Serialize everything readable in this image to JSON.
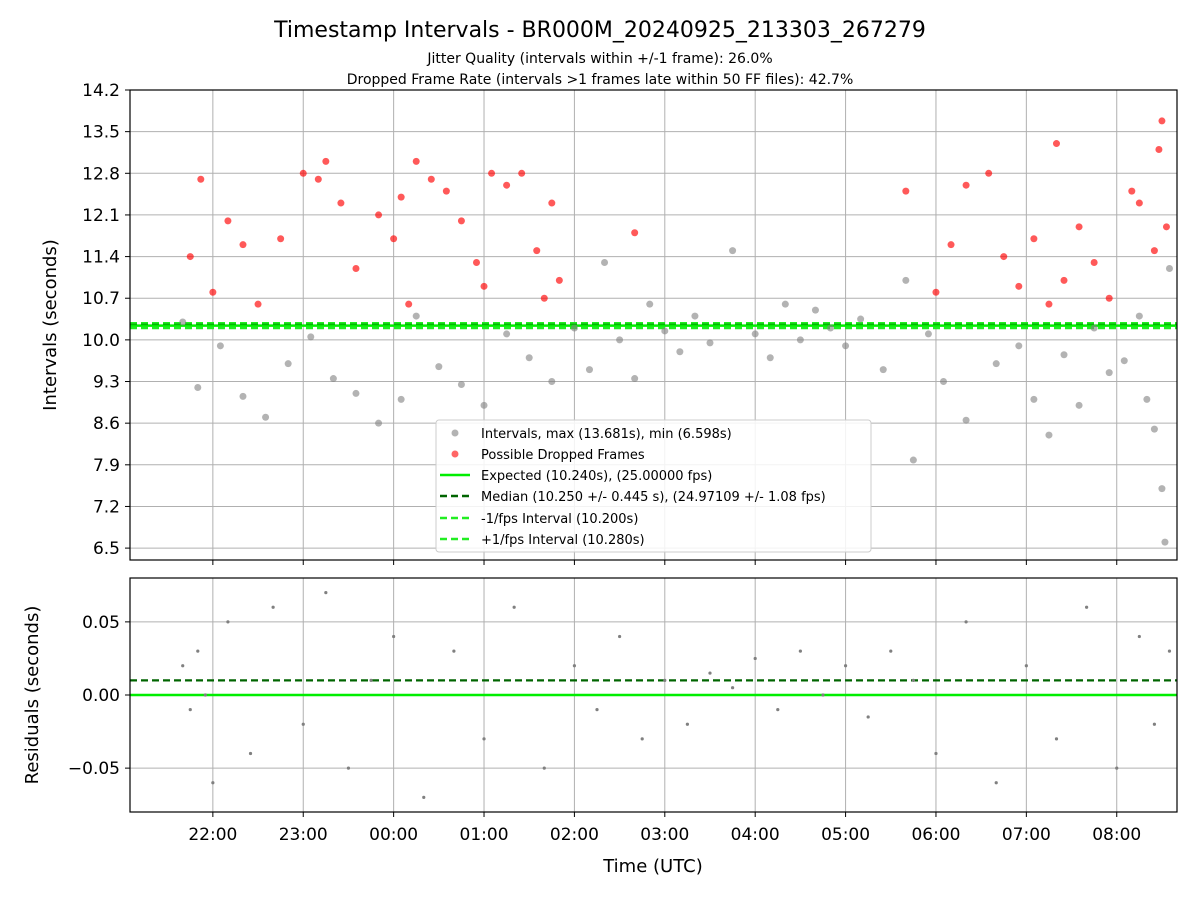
{
  "title": "Timestamp Intervals - BR000M_20240925_213303_267279",
  "subtitle_1": "Jitter Quality (intervals within +/-1 frame): 26.0%",
  "subtitle_2": "Dropped Frame Rate (intervals >1 frames late within 50 FF files): 42.7%",
  "colors": {
    "intervals": "#808080",
    "dropped": "#ff0000",
    "expected": "#00ee00",
    "median": "#006400",
    "bounds": "#22ee22",
    "grid": "#b0b0b0"
  },
  "chart_data": [
    {
      "type": "scatter",
      "ylabel": "Intervals (seconds)",
      "ylim": [
        6.3,
        14.2
      ],
      "yticks": [
        "6.5",
        "7.2",
        "7.9",
        "8.6",
        "9.3",
        "10.0",
        "10.7",
        "11.4",
        "12.1",
        "12.8",
        "13.5",
        "14.2"
      ],
      "xlim": [
        "21:05",
        "08:40"
      ],
      "grid": true,
      "legend_placement": "lower-center",
      "legend": [
        "Intervals, max (13.681s), min (6.598s)",
        "Possible Dropped Frames",
        "Expected (10.240s), (25.00000 fps)",
        "Median (10.250 +/- 0.445 s), (24.97109 +/- 1.08 fps)",
        "-1/fps Interval (10.200s)",
        "+1/fps Interval (10.280s)"
      ],
      "lines": {
        "expected": 10.24,
        "median": 10.25,
        "minus_1_fps": 10.2,
        "plus_1_fps": 10.28
      },
      "series": [
        {
          "name": "Intervals, max (13.681s), min (6.598s)",
          "points": [
            [
              "21:40",
              10.3
            ],
            [
              "21:50",
              9.2
            ],
            [
              "22:05",
              9.9
            ],
            [
              "22:20",
              9.05
            ],
            [
              "22:35",
              8.7
            ],
            [
              "22:50",
              9.6
            ],
            [
              "23:05",
              10.05
            ],
            [
              "23:20",
              9.35
            ],
            [
              "23:35",
              9.1
            ],
            [
              "23:50",
              8.6
            ],
            [
              "00:05",
              9.0
            ],
            [
              "00:15",
              10.4
            ],
            [
              "00:30",
              9.55
            ],
            [
              "00:45",
              9.25
            ],
            [
              "01:00",
              8.9
            ],
            [
              "01:15",
              10.1
            ],
            [
              "01:30",
              9.7
            ],
            [
              "01:45",
              9.3
            ],
            [
              "02:00",
              10.2
            ],
            [
              "02:10",
              9.5
            ],
            [
              "02:20",
              11.3
            ],
            [
              "02:30",
              10.0
            ],
            [
              "02:40",
              9.35
            ],
            [
              "02:50",
              10.6
            ],
            [
              "03:00",
              10.15
            ],
            [
              "03:10",
              9.8
            ],
            [
              "03:20",
              10.4
            ],
            [
              "03:30",
              9.95
            ],
            [
              "03:45",
              11.5
            ],
            [
              "04:00",
              10.1
            ],
            [
              "04:10",
              9.7
            ],
            [
              "04:20",
              10.6
            ],
            [
              "04:30",
              10.0
            ],
            [
              "04:40",
              10.5
            ],
            [
              "04:50",
              10.2
            ],
            [
              "05:00",
              9.9
            ],
            [
              "05:10",
              10.35
            ],
            [
              "05:25",
              9.5
            ],
            [
              "05:40",
              11.0
            ],
            [
              "05:45",
              7.98
            ],
            [
              "05:55",
              10.1
            ],
            [
              "06:05",
              9.3
            ],
            [
              "06:20",
              8.65
            ],
            [
              "06:40",
              9.6
            ],
            [
              "06:55",
              9.9
            ],
            [
              "07:05",
              9.0
            ],
            [
              "07:15",
              8.4
            ],
            [
              "07:25",
              9.75
            ],
            [
              "07:35",
              8.9
            ],
            [
              "07:45",
              10.2
            ],
            [
              "07:55",
              9.45
            ],
            [
              "08:05",
              9.65
            ],
            [
              "08:15",
              10.4
            ],
            [
              "08:20",
              9.0
            ],
            [
              "08:25",
              8.5
            ],
            [
              "08:30",
              7.5
            ],
            [
              "08:32",
              6.6
            ],
            [
              "08:35",
              11.2
            ]
          ]
        },
        {
          "name": "Possible Dropped Frames",
          "points": [
            [
              "21:45",
              11.4
            ],
            [
              "21:52",
              12.7
            ],
            [
              "22:00",
              10.8
            ],
            [
              "22:10",
              12.0
            ],
            [
              "22:20",
              11.6
            ],
            [
              "22:30",
              10.6
            ],
            [
              "22:45",
              11.7
            ],
            [
              "23:00",
              12.8
            ],
            [
              "23:10",
              12.7
            ],
            [
              "23:15",
              13.0
            ],
            [
              "23:25",
              12.3
            ],
            [
              "23:35",
              11.2
            ],
            [
              "23:50",
              12.1
            ],
            [
              "00:00",
              11.7
            ],
            [
              "00:05",
              12.4
            ],
            [
              "00:10",
              10.6
            ],
            [
              "00:15",
              13.0
            ],
            [
              "00:25",
              12.7
            ],
            [
              "00:35",
              12.5
            ],
            [
              "00:45",
              12.0
            ],
            [
              "00:55",
              11.3
            ],
            [
              "01:00",
              10.9
            ],
            [
              "01:05",
              12.8
            ],
            [
              "01:15",
              12.6
            ],
            [
              "01:25",
              12.8
            ],
            [
              "01:35",
              11.5
            ],
            [
              "01:40",
              10.7
            ],
            [
              "01:45",
              12.3
            ],
            [
              "01:50",
              11.0
            ],
            [
              "02:40",
              11.8
            ],
            [
              "05:40",
              12.5
            ],
            [
              "06:00",
              10.8
            ],
            [
              "06:10",
              11.6
            ],
            [
              "06:20",
              12.6
            ],
            [
              "06:35",
              12.8
            ],
            [
              "06:45",
              11.4
            ],
            [
              "06:55",
              10.9
            ],
            [
              "07:05",
              11.7
            ],
            [
              "07:15",
              10.6
            ],
            [
              "07:20",
              13.3
            ],
            [
              "07:25",
              11.0
            ],
            [
              "07:35",
              11.9
            ],
            [
              "07:45",
              11.3
            ],
            [
              "07:55",
              10.7
            ],
            [
              "08:10",
              12.5
            ],
            [
              "08:15",
              12.3
            ],
            [
              "08:25",
              11.5
            ],
            [
              "08:28",
              13.2
            ],
            [
              "08:30",
              13.68
            ],
            [
              "08:33",
              11.9
            ]
          ]
        }
      ]
    },
    {
      "type": "scatter",
      "xlabel": "Time (UTC)",
      "ylabel": "Residuals (seconds)",
      "ylim": [
        -0.08,
        0.08
      ],
      "yticks": [
        "−0.05",
        "0.00",
        "0.05"
      ],
      "xticks": [
        "22:00",
        "23:00",
        "00:00",
        "01:00",
        "02:00",
        "03:00",
        "04:00",
        "05:00",
        "06:00",
        "07:00",
        "08:00"
      ],
      "grid": true,
      "lines": {
        "expected": 0.0,
        "median": 0.01
      },
      "series": [
        {
          "name": "",
          "points": [
            [
              "21:40",
              0.02
            ],
            [
              "21:45",
              -0.01
            ],
            [
              "21:50",
              0.03
            ],
            [
              "21:55",
              0.0
            ],
            [
              "22:00",
              -0.06
            ],
            [
              "22:10",
              0.05
            ],
            [
              "22:25",
              -0.04
            ],
            [
              "22:40",
              0.06
            ],
            [
              "23:00",
              -0.02
            ],
            [
              "23:15",
              0.07
            ],
            [
              "23:30",
              -0.05
            ],
            [
              "23:45",
              0.01
            ],
            [
              "00:00",
              0.04
            ],
            [
              "00:20",
              -0.07
            ],
            [
              "00:40",
              0.03
            ],
            [
              "01:00",
              -0.03
            ],
            [
              "01:20",
              0.06
            ],
            [
              "01:40",
              -0.05
            ],
            [
              "02:00",
              0.02
            ],
            [
              "02:15",
              -0.01
            ],
            [
              "02:30",
              0.04
            ],
            [
              "02:45",
              -0.03
            ],
            [
              "03:00",
              0.01
            ],
            [
              "03:15",
              -0.02
            ],
            [
              "03:30",
              0.015
            ],
            [
              "03:45",
              0.005
            ],
            [
              "04:00",
              0.025
            ],
            [
              "04:15",
              -0.01
            ],
            [
              "04:30",
              0.03
            ],
            [
              "04:45",
              0.0
            ],
            [
              "05:00",
              0.02
            ],
            [
              "05:15",
              -0.015
            ],
            [
              "05:30",
              0.03
            ],
            [
              "05:45",
              0.01
            ],
            [
              "06:00",
              -0.04
            ],
            [
              "06:20",
              0.05
            ],
            [
              "06:40",
              -0.06
            ],
            [
              "07:00",
              0.02
            ],
            [
              "07:20",
              -0.03
            ],
            [
              "07:40",
              0.06
            ],
            [
              "08:00",
              -0.05
            ],
            [
              "08:15",
              0.04
            ],
            [
              "08:25",
              -0.02
            ],
            [
              "08:35",
              0.03
            ]
          ]
        }
      ]
    }
  ]
}
